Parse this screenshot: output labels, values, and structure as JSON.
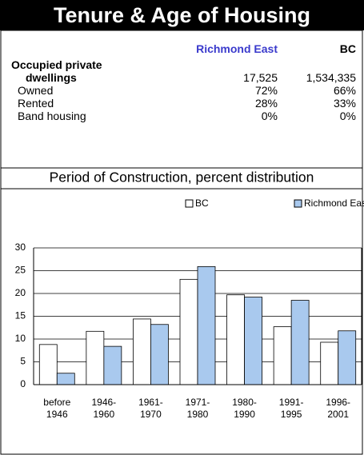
{
  "header": {
    "title": "Tenure & Age of Housing"
  },
  "table": {
    "columns": [
      "Richmond East",
      "BC"
    ],
    "rows": [
      {
        "label": [
          "Occupied private",
          "dwellings"
        ],
        "values": [
          "17,525",
          "1,534,335"
        ]
      },
      {
        "label": "Owned",
        "values": [
          "72%",
          "66%"
        ]
      },
      {
        "label": "Rented",
        "values": [
          "28%",
          "33%"
        ]
      },
      {
        "label": "Band housing",
        "values": [
          "0%",
          "0%"
        ]
      }
    ]
  },
  "chart_data": {
    "type": "bar",
    "title": "Period of Construction, percent distribution",
    "categories": [
      "before 1946",
      "1946-1960",
      "1961-1970",
      "1971-1980",
      "1980-1990",
      "1991-1995",
      "1996-2001"
    ],
    "series": [
      {
        "name": "BC",
        "color": "#ffffff",
        "values": [
          8.8,
          11.7,
          14.4,
          23.1,
          19.7,
          12.7,
          9.3
        ]
      },
      {
        "name": "Richmond East",
        "color": "#a9c9ee",
        "values": [
          2.5,
          8.4,
          13.2,
          25.9,
          19.2,
          18.5,
          11.8
        ]
      }
    ],
    "ylim": [
      0,
      30
    ],
    "yticks": [
      0,
      5,
      10,
      15,
      20,
      25,
      30
    ],
    "grid": true,
    "legend": "top"
  }
}
